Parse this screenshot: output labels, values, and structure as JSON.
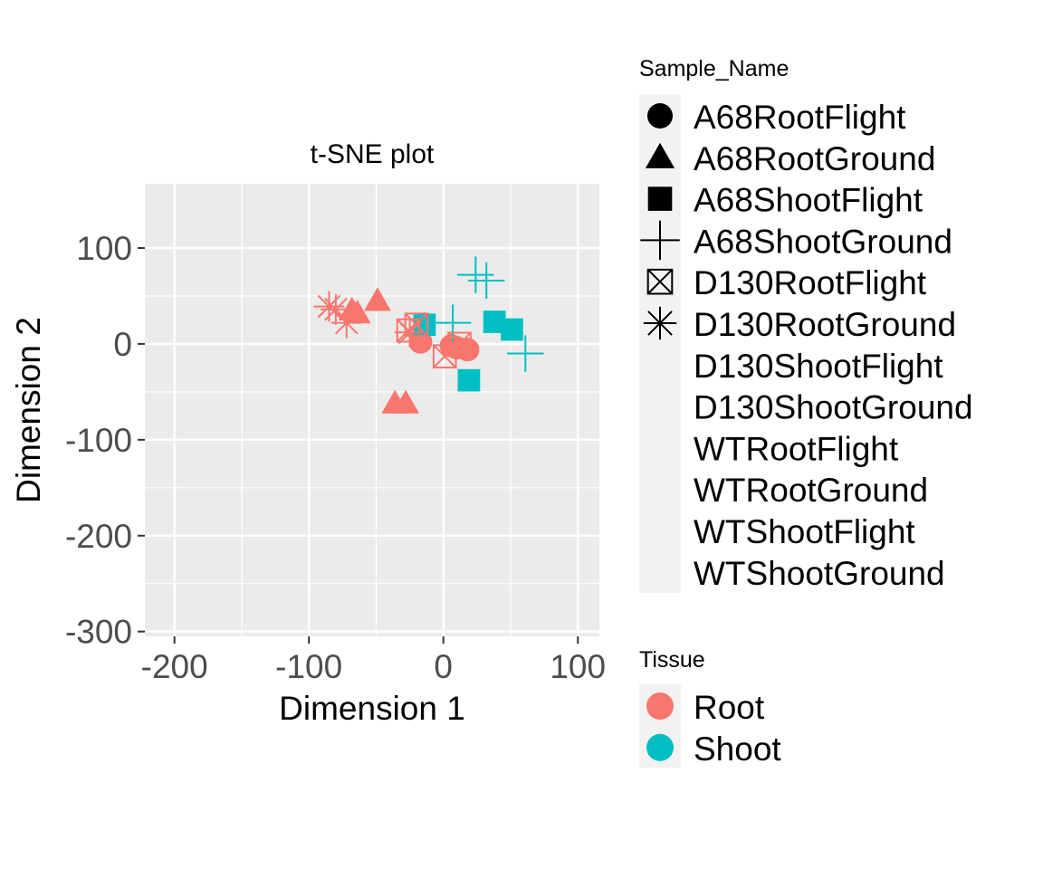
{
  "chart_data": {
    "type": "scatter",
    "title": "t-SNE plot",
    "xlabel": "Dimension 1",
    "ylabel": "Dimension 2",
    "xlim": [
      -222,
      116
    ],
    "ylim": [
      -305,
      167
    ],
    "xticks": [
      -200,
      -100,
      0,
      100
    ],
    "yticks": [
      100,
      0,
      -100,
      -200,
      -300
    ],
    "grid": true,
    "colors": {
      "Root": "#F8766D",
      "Shoot": "#00BFC4"
    },
    "points": [
      {
        "sample": "A68RootFlight",
        "tissue": "Root",
        "shape": "circle",
        "x": -17,
        "y": 2
      },
      {
        "sample": "A68RootFlight",
        "tissue": "Root",
        "shape": "circle",
        "x": 6,
        "y": -2
      },
      {
        "sample": "A68RootFlight",
        "tissue": "Root",
        "shape": "circle",
        "x": 10,
        "y": -4
      },
      {
        "sample": "A68RootFlight",
        "tissue": "Root",
        "shape": "circle",
        "x": 18,
        "y": -6
      },
      {
        "sample": "A68RootGround",
        "tissue": "Root",
        "shape": "triangle",
        "x": -49,
        "y": 45
      },
      {
        "sample": "A68RootGround",
        "tissue": "Root",
        "shape": "triangle",
        "x": -68,
        "y": 35
      },
      {
        "sample": "A68RootGround",
        "tissue": "Root",
        "shape": "triangle",
        "x": -64,
        "y": 32
      },
      {
        "sample": "A68RootGround",
        "tissue": "Root",
        "shape": "triangle",
        "x": -36,
        "y": -62
      },
      {
        "sample": "A68RootGround",
        "tissue": "Root",
        "shape": "triangle",
        "x": -28,
        "y": -62
      },
      {
        "sample": "A68ShootFlight",
        "tissue": "Shoot",
        "shape": "square",
        "x": -14,
        "y": 20
      },
      {
        "sample": "A68ShootFlight",
        "tissue": "Shoot",
        "shape": "square",
        "x": 38,
        "y": 23
      },
      {
        "sample": "A68ShootFlight",
        "tissue": "Shoot",
        "shape": "square",
        "x": 51,
        "y": 15
      },
      {
        "sample": "A68ShootFlight",
        "tissue": "Shoot",
        "shape": "square",
        "x": 19,
        "y": -38
      },
      {
        "sample": "A68ShootGround",
        "tissue": "Shoot",
        "shape": "plus",
        "x": 24,
        "y": 72
      },
      {
        "sample": "A68ShootGround",
        "tissue": "Shoot",
        "shape": "plus",
        "x": 32,
        "y": 66
      },
      {
        "sample": "A68ShootGround",
        "tissue": "Shoot",
        "shape": "plus",
        "x": 7,
        "y": 22
      },
      {
        "sample": "A68ShootGround",
        "tissue": "Shoot",
        "shape": "plus",
        "x": 61,
        "y": -10
      },
      {
        "sample": "D130RootFlight",
        "tissue": "Root",
        "shape": "square-cross",
        "x": -20,
        "y": 20
      },
      {
        "sample": "D130RootFlight",
        "tissue": "Root",
        "shape": "square-cross",
        "x": -26,
        "y": 14
      },
      {
        "sample": "D130RootFlight",
        "tissue": "Root",
        "shape": "square-cross",
        "x": 12,
        "y": 0
      },
      {
        "sample": "D130RootFlight",
        "tissue": "Root",
        "shape": "square-cross",
        "x": 1,
        "y": -13
      },
      {
        "sample": "D130RootGround",
        "tissue": "Root",
        "shape": "asterisk",
        "x": -85,
        "y": 39
      },
      {
        "sample": "D130RootGround",
        "tissue": "Root",
        "shape": "asterisk",
        "x": -80,
        "y": 36
      },
      {
        "sample": "D130RootGround",
        "tissue": "Root",
        "shape": "asterisk",
        "x": -72,
        "y": 22
      },
      {
        "sample": "D130RootGround",
        "tissue": "Root",
        "shape": "asterisk",
        "x": -25,
        "y": 12
      }
    ],
    "legend": {
      "sample_name": {
        "title": "Sample_Name",
        "items": [
          {
            "label": "A68RootFlight",
            "shape": "circle"
          },
          {
            "label": "A68RootGround",
            "shape": "triangle"
          },
          {
            "label": "A68ShootFlight",
            "shape": "square"
          },
          {
            "label": "A68ShootGround",
            "shape": "plus"
          },
          {
            "label": "D130RootFlight",
            "shape": "square-cross"
          },
          {
            "label": "D130RootGround",
            "shape": "asterisk"
          },
          {
            "label": "D130ShootFlight",
            "shape": "none"
          },
          {
            "label": "D130ShootGround",
            "shape": "none"
          },
          {
            "label": "WTRootFlight",
            "shape": "none"
          },
          {
            "label": "WTRootGround",
            "shape": "none"
          },
          {
            "label": "WTShootFlight",
            "shape": "none"
          },
          {
            "label": "WTShootGround",
            "shape": "none"
          }
        ]
      },
      "tissue": {
        "title": "Tissue",
        "items": [
          {
            "label": "Root",
            "color": "#F8766D"
          },
          {
            "label": "Shoot",
            "color": "#00BFC4"
          }
        ]
      }
    }
  }
}
